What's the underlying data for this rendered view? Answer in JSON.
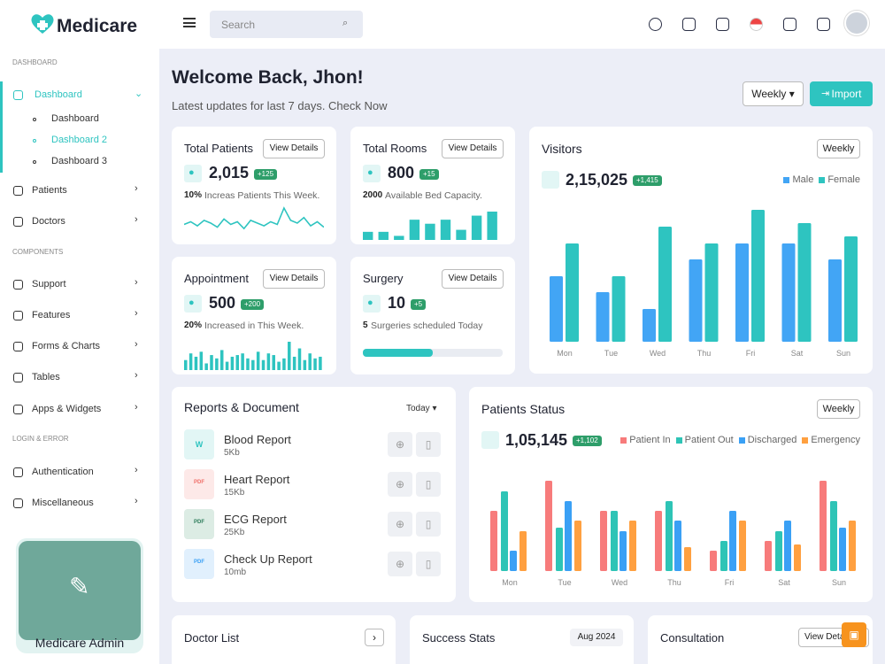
{
  "sidebar": {
    "brand": "Medicare",
    "sections": [
      {
        "title": "DASHBOARD",
        "items": [
          {
            "label": "Dashboard",
            "children": [
              "Dashboard",
              "Dashboard 2",
              "Dashboard 3"
            ]
          },
          {
            "label": "Patients"
          },
          {
            "label": "Doctors"
          }
        ]
      },
      {
        "title": "COMPONENTS",
        "items": [
          {
            "label": "Support"
          },
          {
            "label": "Features"
          },
          {
            "label": "Forms & Charts"
          },
          {
            "label": "Tables"
          },
          {
            "label": "Apps & Widgets"
          }
        ]
      },
      {
        "title": "LOGIN & ERROR",
        "items": [
          {
            "label": "Authentication"
          },
          {
            "label": "Miscellaneous"
          }
        ]
      }
    ],
    "promo": "Medicare Admin"
  },
  "header": {
    "search": "Search"
  },
  "welcome": {
    "title": "Welcome Back, Jhon!",
    "subtitle": "Latest updates for last 7 days. Check Now",
    "period": "Weekly",
    "import": "Import"
  },
  "stats": [
    {
      "title": "Total Patients",
      "button": "View Details",
      "value": "2,015",
      "badge": "+125",
      "note_bold": "10%",
      "note": "Increas Patients This Week.",
      "chart": "line",
      "trend": [
        10,
        12,
        9,
        13,
        11,
        8,
        14,
        10,
        12,
        7,
        13,
        11,
        9,
        12,
        10,
        22,
        13,
        11,
        15,
        9,
        12,
        8
      ]
    },
    {
      "title": "Total Rooms",
      "button": "View Details",
      "value": "800",
      "badge": "+15",
      "note_bold": "2000",
      "note": "Available Bed Capacity.",
      "chart": "bar",
      "trend": [
        8,
        8,
        4,
        20,
        16,
        20,
        10,
        24,
        28
      ]
    },
    {
      "title": "Appointment",
      "button": "View Details",
      "value": "500",
      "badge": "+200",
      "note_bold": "20%",
      "note": "Increased in This Week.",
      "chart": "bar",
      "trend": [
        12,
        20,
        16,
        22,
        8,
        18,
        14,
        24,
        10,
        16,
        18,
        20,
        14,
        12,
        22,
        12,
        20,
        18,
        10,
        14,
        34,
        16,
        26,
        12,
        20,
        14,
        16
      ]
    },
    {
      "title": "Surgery",
      "button": "View Details",
      "value": "10",
      "badge": "+5",
      "note_bold": "5",
      "note": "Surgeries scheduled Today",
      "chart": "progress",
      "progress": 50
    }
  ],
  "visitors": {
    "title": "Visitors",
    "period": "Weekly",
    "total": "2,15,025",
    "badge": "+1,415",
    "categories": [
      "Mon",
      "Tue",
      "Wed",
      "Thu",
      "Fri",
      "Sat",
      "Sun"
    ],
    "series": [
      {
        "name": "Male",
        "color": "#42a5f5",
        "values": [
          74,
          56,
          37,
          93,
          111,
          111,
          93
        ]
      },
      {
        "name": "Female",
        "color": "#2ec4c0",
        "values": [
          111,
          74,
          130,
          111,
          149,
          134,
          119
        ]
      }
    ]
  },
  "reports": {
    "title": "Reports & Document",
    "period": "Today",
    "items": [
      {
        "icon": "W",
        "name": "Blood Report",
        "size": "5Kb",
        "color": "#2ec4c0",
        "bg": "#e2f6f5"
      },
      {
        "icon": "PDF",
        "name": "Heart Report",
        "size": "15Kb",
        "color": "#f0706a",
        "bg": "#fde9e8"
      },
      {
        "icon": "PDF",
        "name": "ECG Report",
        "size": "25Kb",
        "color": "#2e7d5b",
        "bg": "#dcece4"
      },
      {
        "icon": "PDF",
        "name": "Check Up Report",
        "size": "10mb",
        "color": "#3aa0f5",
        "bg": "#e1f0fd"
      }
    ]
  },
  "patients_status": {
    "title": "Patients Status",
    "period": "Weekly",
    "total": "1,05,145",
    "badge": "+1,102",
    "categories": [
      "Mon",
      "Tue",
      "Wed",
      "Thu",
      "Fri",
      "Sat",
      "Sun"
    ],
    "series": [
      {
        "name": "Patient In",
        "color": "#f77b7b",
        "values": [
          68,
          102,
          68,
          68,
          23,
          34,
          102
        ]
      },
      {
        "name": "Patient Out",
        "color": "#2ec4b6",
        "values": [
          90,
          49,
          68,
          79,
          34,
          45,
          79
        ]
      },
      {
        "name": "Discharged",
        "color": "#3aa0f5",
        "values": [
          23,
          79,
          45,
          57,
          68,
          57,
          49
        ]
      },
      {
        "name": "Emergency",
        "color": "#ffa040",
        "values": [
          45,
          57,
          57,
          27,
          57,
          30,
          57
        ]
      }
    ]
  },
  "bottom": {
    "doctor_list": "Doctor List",
    "success_stats": "Success Stats",
    "success_period": "Aug 2024",
    "consultation": "Consultation",
    "consultation_button": "View Details"
  }
}
